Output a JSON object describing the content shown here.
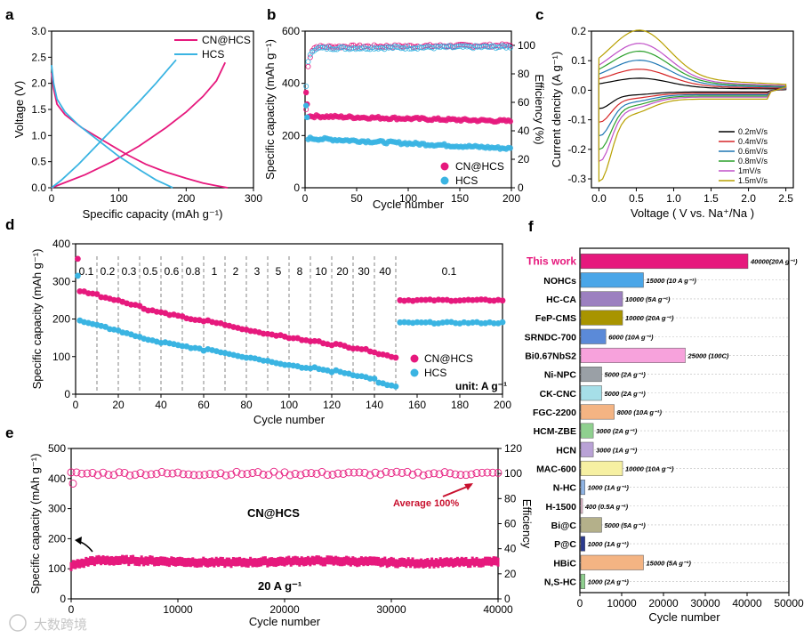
{
  "panels": {
    "a": "a",
    "b": "b",
    "c": "c",
    "d": "d",
    "e": "e",
    "f": "f"
  },
  "watermark": "大数跨境",
  "colors": {
    "cn": "#e6197d",
    "hcs": "#3ab4e2"
  },
  "chart_data": [
    {
      "id": "a",
      "type": "line",
      "xlabel": "Specific capacity (mAh g⁻¹)",
      "ylabel": "Voltage (V)",
      "xlim": [
        0,
        300
      ],
      "ylim": [
        0,
        3.0
      ],
      "xticks": [
        "0",
        "100",
        "200",
        "300"
      ],
      "yticks": [
        "0.0",
        "0.5",
        "1.0",
        "1.5",
        "2.0",
        "2.5",
        "3.0"
      ],
      "series": [
        {
          "name": "CN@HCS",
          "color": "#e6197d",
          "discharge": [
            [
              0,
              2.2
            ],
            [
              3,
              1.9
            ],
            [
              8,
              1.6
            ],
            [
              20,
              1.4
            ],
            [
              45,
              1.15
            ],
            [
              80,
              0.88
            ],
            [
              110,
              0.65
            ],
            [
              140,
              0.45
            ],
            [
              170,
              0.3
            ],
            [
              200,
              0.18
            ],
            [
              225,
              0.09
            ],
            [
              245,
              0.04
            ],
            [
              262,
              0.0
            ]
          ],
          "charge": [
            [
              0,
              0.0
            ],
            [
              20,
              0.1
            ],
            [
              50,
              0.25
            ],
            [
              90,
              0.5
            ],
            [
              130,
              0.8
            ],
            [
              170,
              1.15
            ],
            [
              200,
              1.45
            ],
            [
              225,
              1.75
            ],
            [
              245,
              2.05
            ],
            [
              258,
              2.4
            ]
          ]
        },
        {
          "name": "HCS",
          "color": "#3ab4e2",
          "discharge": [
            [
              0,
              2.35
            ],
            [
              3,
              2.0
            ],
            [
              8,
              1.7
            ],
            [
              20,
              1.45
            ],
            [
              40,
              1.2
            ],
            [
              70,
              0.9
            ],
            [
              100,
              0.6
            ],
            [
              130,
              0.35
            ],
            [
              155,
              0.15
            ],
            [
              172,
              0.05
            ],
            [
              180,
              0.0
            ]
          ],
          "charge": [
            [
              0,
              0.0
            ],
            [
              15,
              0.15
            ],
            [
              40,
              0.45
            ],
            [
              70,
              0.85
            ],
            [
              100,
              1.25
            ],
            [
              130,
              1.65
            ],
            [
              155,
              2.0
            ],
            [
              175,
              2.3
            ],
            [
              185,
              2.45
            ]
          ]
        }
      ]
    },
    {
      "id": "b",
      "type": "scatter",
      "xlabel": "Cycle number",
      "ylabel": "Specific capacity (mAh g⁻¹)",
      "y2label": "Efficiency (%)",
      "xlim": [
        0,
        200
      ],
      "ylim": [
        0,
        600
      ],
      "y2lim": [
        0,
        110
      ],
      "xticks": [
        "0",
        "50",
        "100",
        "150",
        "200"
      ],
      "yticks": [
        "0",
        "200",
        "400",
        "600"
      ],
      "y2ticks": [
        "0",
        "20",
        "40",
        "60",
        "80",
        "100"
      ],
      "series": [
        {
          "name": "CN@HCS",
          "color": "#e6197d",
          "first": [
            [
              1,
              365
            ],
            [
              2,
              320
            ]
          ],
          "start": 275,
          "end": 255
        },
        {
          "name": "HCS",
          "color": "#3ab4e2",
          "first": [
            [
              1,
              315
            ],
            [
              2,
              270
            ]
          ],
          "start": 190,
          "end": 150
        },
        {
          "name": "CN@HCS eff",
          "color": "#e6197d",
          "eff": [
            [
              1,
              55
            ],
            [
              3,
              85
            ],
            [
              6,
              96
            ],
            [
              10,
              99
            ],
            [
              200,
              100
            ]
          ]
        },
        {
          "name": "HCS eff",
          "color": "#3ab4e2",
          "eff": [
            [
              1,
              72
            ],
            [
              3,
              88
            ],
            [
              6,
              95
            ],
            [
              10,
              98
            ],
            [
              200,
              99
            ]
          ]
        }
      ]
    },
    {
      "id": "c",
      "type": "line",
      "xlabel": "Voltage ( V vs. Na⁺/Na )",
      "ylabel": "Current dencity (A g⁻¹)",
      "xlim": [
        -0.1,
        2.6
      ],
      "ylim": [
        -0.33,
        0.2
      ],
      "xticks": [
        "0.0",
        "0.5",
        "1.0",
        "1.5",
        "2.0",
        "2.5"
      ],
      "yticks": [
        "-0.3",
        "-0.2",
        "-0.1",
        "0.0",
        "0.1",
        "0.2"
      ],
      "series": [
        {
          "name": "0.2mV/s",
          "color": "#000000",
          "scale": 0.2
        },
        {
          "name": "0.4mV/s",
          "color": "#d62728",
          "scale": 0.35
        },
        {
          "name": "0.6mV/s",
          "color": "#1f77b4",
          "scale": 0.5
        },
        {
          "name": "0.8mV/s",
          "color": "#2ca02c",
          "scale": 0.65
        },
        {
          "name": "1mV/s",
          "color": "#c050c8",
          "scale": 0.78
        },
        {
          "name": "1.5mV/s",
          "color": "#b8a000",
          "scale": 1.0
        }
      ]
    },
    {
      "id": "d",
      "type": "scatter",
      "xlabel": "Cycle number",
      "ylabel": "Specific capacity (mAh g⁻¹)",
      "unit": "unit: A g⁻¹",
      "xlim": [
        0,
        200
      ],
      "ylim": [
        0,
        400
      ],
      "xticks": [
        "0",
        "20",
        "40",
        "60",
        "80",
        "100",
        "120",
        "140",
        "160",
        "180",
        "200"
      ],
      "yticks": [
        "0",
        "100",
        "200",
        "300",
        "400"
      ],
      "rates": [
        "0.1",
        "0.2",
        "0.3",
        "0.5",
        "0.6",
        "0.8",
        "1",
        "2",
        "3",
        "5",
        "8",
        "10",
        "20",
        "30",
        "40",
        "0.1"
      ],
      "series": [
        {
          "name": "CN@HCS",
          "color": "#e6197d",
          "first": [
            [
              1,
              360
            ]
          ],
          "levels": [
            270,
            255,
            240,
            222,
            210,
            198,
            190,
            176,
            165,
            155,
            145,
            137,
            128,
            118,
            103,
            250
          ]
        },
        {
          "name": "HCS",
          "color": "#3ab4e2",
          "first": [
            [
              1,
              315
            ]
          ],
          "levels": [
            190,
            175,
            158,
            142,
            132,
            122,
            115,
            103,
            93,
            82,
            72,
            65,
            57,
            45,
            25,
            190
          ]
        }
      ]
    },
    {
      "id": "e",
      "type": "scatter",
      "xlabel": "Cycle number",
      "ylabel": "Specific capacity (mAh g⁻¹)",
      "y2label": "Efficiency",
      "xlim": [
        0,
        40000
      ],
      "ylim": [
        0,
        500
      ],
      "y2lim": [
        0,
        120
      ],
      "xticks": [
        "0",
        "10000",
        "20000",
        "30000",
        "40000"
      ],
      "yticks": [
        "0",
        "100",
        "200",
        "300",
        "400",
        "500"
      ],
      "y2ticks": [
        "0",
        "20",
        "40",
        "60",
        "80",
        "100",
        "120"
      ],
      "annot_material": "CN@HCS",
      "annot_rate": "20 A g⁻¹",
      "annot_avg": "Average 100%",
      "capacity": {
        "start": 110,
        "plateau": 125,
        "end": 122
      },
      "efficiency": 100
    },
    {
      "id": "f",
      "type": "bar",
      "xlabel": "Cycle number",
      "xlim": [
        0,
        50000
      ],
      "xticks": [
        "0",
        "10000",
        "20000",
        "30000",
        "40000",
        "50000"
      ],
      "bars": [
        {
          "label": "This work",
          "value": 40000,
          "note": "40000(20A g⁻¹)",
          "color": "#e6197d",
          "hl": true
        },
        {
          "label": "NOHCs",
          "value": 15000,
          "note": "15000 (10 A g⁻¹)",
          "color": "#4aa6e8"
        },
        {
          "label": "HC-CA",
          "value": 10000,
          "note": "10000 (5A g⁻¹)",
          "color": "#9c80c0"
        },
        {
          "label": "FeP-CMS",
          "value": 10000,
          "note": "10000 (20A g⁻¹)",
          "color": "#a89400"
        },
        {
          "label": "SRNDC-700",
          "value": 6000,
          "note": "6000 (10A g⁻¹)",
          "color": "#5b8ad8"
        },
        {
          "label": "Bi0.67NbS2",
          "value": 25000,
          "note": "25000 (100C)",
          "color": "#f7a2dc"
        },
        {
          "label": "Ni-NPC",
          "value": 5000,
          "note": "5000 (2A g⁻¹)",
          "color": "#9aa0a6"
        },
        {
          "label": "CK-CNC",
          "value": 5000,
          "note": "5000 (2A g⁻¹)",
          "color": "#a6dfe8"
        },
        {
          "label": "FGC-2200",
          "value": 8000,
          "note": "8000 (10A g⁻¹)",
          "color": "#f4b483"
        },
        {
          "label": "HCM-ZBE",
          "value": 3000,
          "note": "3000 (2A g⁻¹)",
          "color": "#8fd08f"
        },
        {
          "label": "HCN",
          "value": 3000,
          "note": "3000 (1A g⁻¹)",
          "color": "#b9a2d6"
        },
        {
          "label": "MAC-600",
          "value": 10000,
          "note": "10000 (10A g⁻¹)",
          "color": "#f6f0a2"
        },
        {
          "label": "N-HC",
          "value": 1000,
          "note": "1000 (1A g⁻¹)",
          "color": "#8fb4e4"
        },
        {
          "label": "H-1500",
          "value": 400,
          "note": "400 (0.5A g⁻¹)",
          "color": "#f7c6dc"
        },
        {
          "label": "Bi@C",
          "value": 5000,
          "note": "5000 (5A g⁻¹)",
          "color": "#b4b08a"
        },
        {
          "label": "P@C",
          "value": 1000,
          "note": "1000 (1A g⁻¹)",
          "color": "#2a3a8f"
        },
        {
          "label": "HBiC",
          "value": 15000,
          "note": "15000 (5A g⁻¹)",
          "color": "#f4b483"
        },
        {
          "label": "N,S-HC",
          "value": 1000,
          "note": "1000 (2A g⁻¹)",
          "color": "#8fd08f"
        }
      ]
    }
  ]
}
